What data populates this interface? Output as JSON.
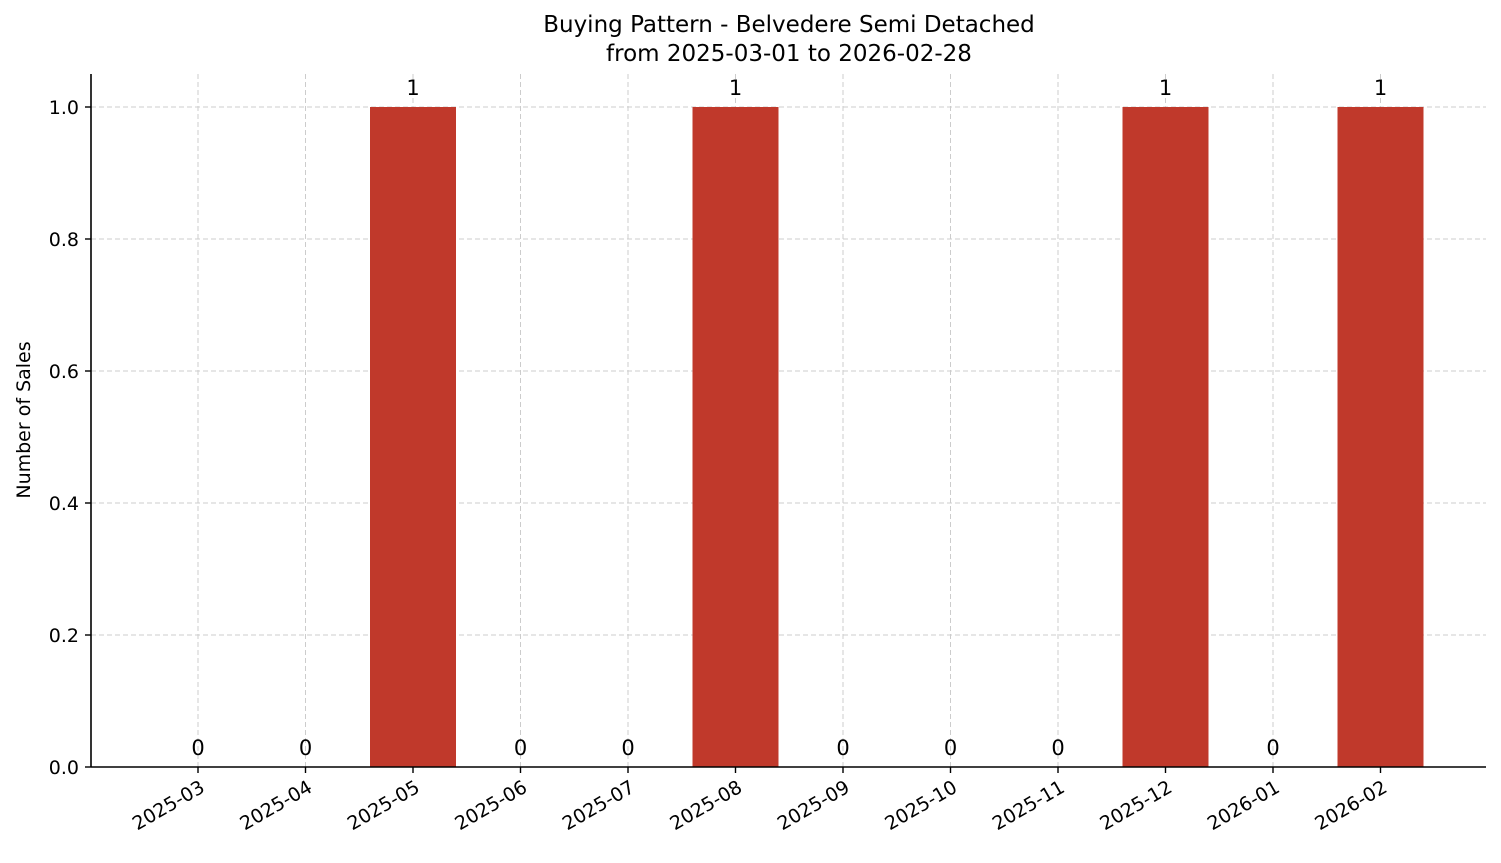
{
  "chart_data": {
    "type": "bar",
    "title": "Buying Pattern - Belvedere Semi Detached",
    "subtitle": "from 2025-03-01 to 2026-02-28",
    "xlabel": "",
    "ylabel": "Number of Sales",
    "categories": [
      "2025-03",
      "2025-04",
      "2025-05",
      "2025-06",
      "2025-07",
      "2025-08",
      "2025-09",
      "2025-10",
      "2025-11",
      "2025-12",
      "2026-01",
      "2026-02"
    ],
    "values": [
      0,
      0,
      1,
      0,
      0,
      1,
      0,
      0,
      0,
      1,
      0,
      1
    ],
    "data_labels": [
      "0",
      "0",
      "1",
      "0",
      "0",
      "1",
      "0",
      "0",
      "0",
      "1",
      "0",
      "1"
    ],
    "ylim": [
      0,
      1.05
    ],
    "yticks": [
      0.0,
      0.2,
      0.4,
      0.6,
      0.8,
      1.0
    ],
    "ytick_labels": [
      "0.0",
      "0.2",
      "0.4",
      "0.6",
      "0.8",
      "1.0"
    ],
    "bar_color": "#c0392b",
    "grid": true,
    "legend": "none"
  }
}
